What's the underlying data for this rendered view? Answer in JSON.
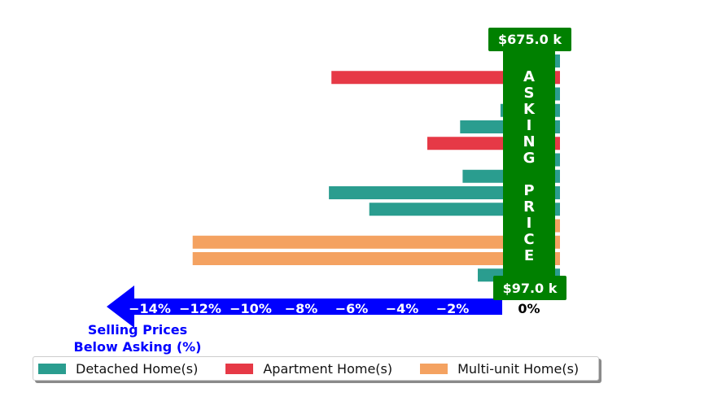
{
  "chart_data": {
    "type": "bar",
    "orientation": "horizontal",
    "colors": {
      "detached": "#2a9d8f",
      "apartment": "#e63946",
      "multi_unit": "#f4a261",
      "axis_arrow": "#0000ff",
      "asking_price": "#008000"
    },
    "bars": [
      {
        "category": "Detached Home(s)",
        "value": 0.0
      },
      {
        "category": "Apartment Home(s)",
        "value": -6.8
      },
      {
        "category": "Detached Home(s)",
        "value": 0.0
      },
      {
        "category": "Detached Home(s)",
        "value": -0.1
      },
      {
        "category": "Detached Home(s)",
        "value": -1.7
      },
      {
        "category": "Apartment Home(s)",
        "value": -3.0
      },
      {
        "category": "Detached Home(s)",
        "value": 0.0
      },
      {
        "category": "Detached Home(s)",
        "value": -1.6
      },
      {
        "category": "Detached Home(s)",
        "value": -6.9
      },
      {
        "category": "Detached Home(s)",
        "value": -5.3
      },
      {
        "category": "Multi-unit Home(s)",
        "value": 0.0
      },
      {
        "category": "Multi-unit Home(s)",
        "value": -12.3
      },
      {
        "category": "Multi-unit Home(s)",
        "value": -12.3
      },
      {
        "category": "Detached Home(s)",
        "value": -1.0
      }
    ],
    "xlim": [
      -15.5,
      1.5
    ],
    "x_ticks": [
      -14,
      -12,
      -10,
      -8,
      -6,
      -4,
      -2
    ],
    "x_tick_labels": [
      "−14%",
      "−12%",
      "−10%",
      "−8%",
      "−6%",
      "−4%",
      "−2%"
    ],
    "zero_label": "0%",
    "xlabel_line1": "Selling Prices",
    "xlabel_line2": "Below Asking (%)",
    "asking_label": "ASKING PRICE",
    "price_max_label": "$675.0 k",
    "price_min_label": "$97.0 k",
    "legend": {
      "placement": "bottom",
      "items": [
        "Detached Home(s)",
        "Apartment Home(s)",
        "Multi-unit Home(s)"
      ]
    }
  }
}
